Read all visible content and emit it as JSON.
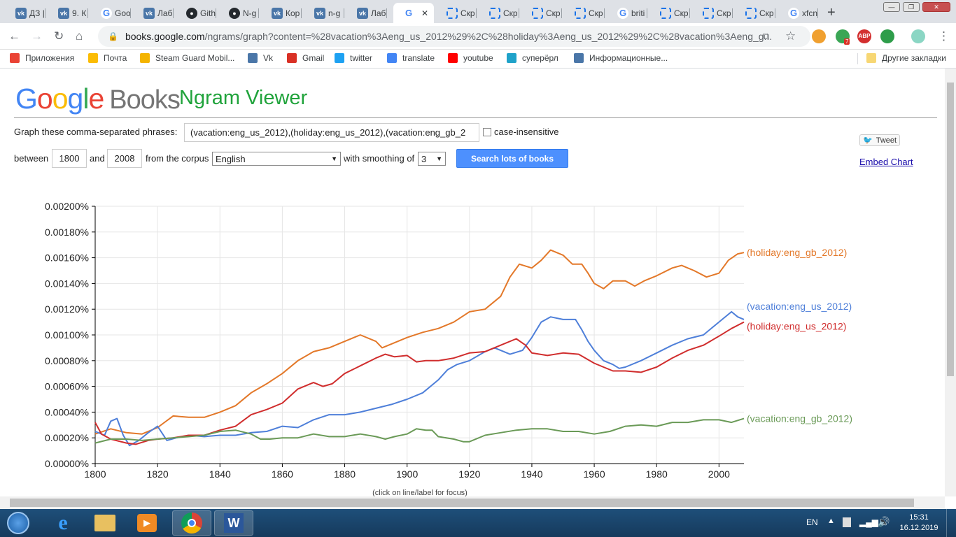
{
  "browser": {
    "tabs": [
      {
        "label": "ДЗ |",
        "icon": "vk-icon"
      },
      {
        "label": "9. К",
        "icon": "vk-icon"
      },
      {
        "label": "Goo",
        "icon": "google-icon"
      },
      {
        "label": "Лаб",
        "icon": "vk-icon"
      },
      {
        "label": "Gith",
        "icon": "github-icon"
      },
      {
        "label": "N-g",
        "icon": "github-icon"
      },
      {
        "label": "Кор",
        "icon": "vk-icon"
      },
      {
        "label": "n-g",
        "icon": "vk-icon"
      },
      {
        "label": "Лаб",
        "icon": "vk-icon"
      },
      {
        "label": "",
        "icon": "google-icon",
        "active": true
      },
      {
        "label": "Скр",
        "icon": "screenshot-icon"
      },
      {
        "label": "Скр",
        "icon": "screenshot-icon"
      },
      {
        "label": "Скр",
        "icon": "screenshot-icon"
      },
      {
        "label": "Скр",
        "icon": "screenshot-icon"
      },
      {
        "label": "briti",
        "icon": "google-icon"
      },
      {
        "label": "Скр",
        "icon": "screenshot-icon"
      },
      {
        "label": "Скр",
        "icon": "screenshot-icon"
      },
      {
        "label": "Скр",
        "icon": "screenshot-icon"
      },
      {
        "label": "xfcn",
        "icon": "google-icon"
      }
    ],
    "url_host": "books.google.com",
    "url_path": "/ngrams/graph?content=%28vacation%3Aeng_us_2012%29%2C%28holiday%3Aeng_us_2012%29%2C%28vacation%3Aeng_g...",
    "abp_badge": "ABP",
    "ext_badge": "7",
    "bookmarks": [
      {
        "label": "Приложения",
        "color": "#ea4335"
      },
      {
        "label": "Почта",
        "color": "#fbbc05"
      },
      {
        "label": "Steam Guard Mobil...",
        "color": "#f4b400"
      },
      {
        "label": "Vk",
        "color": "#4a76a8"
      },
      {
        "label": "Gmail",
        "color": "#d93025"
      },
      {
        "label": "twitter",
        "color": "#1da1f2"
      },
      {
        "label": "translate",
        "color": "#4285f4"
      },
      {
        "label": "youtube",
        "color": "#ff0000"
      },
      {
        "label": "суперёрл",
        "color": "#1fa2c9"
      },
      {
        "label": "Информационные...",
        "color": "#4a76a8"
      }
    ],
    "other_bookmarks": "Другие закладки"
  },
  "page": {
    "logo_google": "Google",
    "logo_books": "Books",
    "title": "Ngram Viewer",
    "graph_label": "Graph these comma-separated phrases:",
    "phrases_value": "(vacation:eng_us_2012),(holiday:eng_us_2012),(vacation:eng_gb_2",
    "case_insensitive_label": "case-insensitive",
    "between_label": "between",
    "year_from": "1800",
    "and_label": "and",
    "year_to": "2008",
    "corpus_label": "from the corpus",
    "corpus_value": "English",
    "smoothing_label": "with smoothing of",
    "smoothing_value": "3",
    "search_button": "Search lots of books",
    "tweet_button": "Tweet",
    "embed_link": "Embed Chart",
    "click_hint": "(click on line/label for focus)"
  },
  "chart_data": {
    "type": "line",
    "xlim": [
      1800,
      2008
    ],
    "ylim": [
      0,
      0.002
    ],
    "x_ticks": [
      "1800",
      "1820",
      "1840",
      "1860",
      "1880",
      "1900",
      "1920",
      "1940",
      "1960",
      "1980",
      "2000"
    ],
    "y_ticks": [
      "0.00000%",
      "0.00020%",
      "0.00040%",
      "0.00060%",
      "0.00080%",
      "0.00100%",
      "0.00120%",
      "0.00140%",
      "0.00160%",
      "0.00180%",
      "0.00200%"
    ],
    "grid": true,
    "series": [
      {
        "name": "(holiday:eng_gb_2012)",
        "color": "#e37829",
        "points": [
          [
            1800,
            0.00023
          ],
          [
            1805,
            0.00027
          ],
          [
            1810,
            0.00024
          ],
          [
            1815,
            0.00023
          ],
          [
            1820,
            0.00028
          ],
          [
            1825,
            0.00037
          ],
          [
            1830,
            0.00036
          ],
          [
            1835,
            0.00036
          ],
          [
            1840,
            0.0004
          ],
          [
            1845,
            0.00045
          ],
          [
            1850,
            0.00055
          ],
          [
            1855,
            0.00062
          ],
          [
            1860,
            0.0007
          ],
          [
            1865,
            0.0008
          ],
          [
            1870,
            0.00087
          ],
          [
            1875,
            0.0009
          ],
          [
            1880,
            0.00095
          ],
          [
            1885,
            0.001
          ],
          [
            1890,
            0.00095
          ],
          [
            1892,
            0.0009
          ],
          [
            1895,
            0.00093
          ],
          [
            1900,
            0.00098
          ],
          [
            1905,
            0.00102
          ],
          [
            1910,
            0.00105
          ],
          [
            1915,
            0.0011
          ],
          [
            1920,
            0.00118
          ],
          [
            1925,
            0.0012
          ],
          [
            1930,
            0.0013
          ],
          [
            1933,
            0.00145
          ],
          [
            1936,
            0.00155
          ],
          [
            1940,
            0.00152
          ],
          [
            1943,
            0.00158
          ],
          [
            1946,
            0.00166
          ],
          [
            1950,
            0.00162
          ],
          [
            1953,
            0.00155
          ],
          [
            1956,
            0.00155
          ],
          [
            1958,
            0.00148
          ],
          [
            1960,
            0.0014
          ],
          [
            1963,
            0.00136
          ],
          [
            1966,
            0.00142
          ],
          [
            1970,
            0.00142
          ],
          [
            1973,
            0.00138
          ],
          [
            1976,
            0.00142
          ],
          [
            1980,
            0.00146
          ],
          [
            1985,
            0.00152
          ],
          [
            1988,
            0.00154
          ],
          [
            1992,
            0.0015
          ],
          [
            1996,
            0.00145
          ],
          [
            2000,
            0.00148
          ],
          [
            2003,
            0.00158
          ],
          [
            2006,
            0.00163
          ],
          [
            2008,
            0.00164
          ]
        ]
      },
      {
        "name": "(vacation:eng_us_2012)",
        "color": "#4e7fd9",
        "points": [
          [
            1800,
            0.00025
          ],
          [
            1803,
            0.00022
          ],
          [
            1805,
            0.00033
          ],
          [
            1807,
            0.00035
          ],
          [
            1809,
            0.00022
          ],
          [
            1811,
            0.00014
          ],
          [
            1814,
            0.00018
          ],
          [
            1817,
            0.00024
          ],
          [
            1820,
            0.00029
          ],
          [
            1823,
            0.00018
          ],
          [
            1826,
            0.0002
          ],
          [
            1830,
            0.00022
          ],
          [
            1835,
            0.00021
          ],
          [
            1840,
            0.00022
          ],
          [
            1845,
            0.00022
          ],
          [
            1850,
            0.00024
          ],
          [
            1855,
            0.00025
          ],
          [
            1860,
            0.00029
          ],
          [
            1865,
            0.00028
          ],
          [
            1870,
            0.00034
          ],
          [
            1875,
            0.00038
          ],
          [
            1880,
            0.00038
          ],
          [
            1885,
            0.0004
          ],
          [
            1890,
            0.00043
          ],
          [
            1895,
            0.00046
          ],
          [
            1900,
            0.0005
          ],
          [
            1905,
            0.00055
          ],
          [
            1910,
            0.00065
          ],
          [
            1913,
            0.00073
          ],
          [
            1916,
            0.00077
          ],
          [
            1920,
            0.0008
          ],
          [
            1925,
            0.00087
          ],
          [
            1928,
            0.0009
          ],
          [
            1930,
            0.00088
          ],
          [
            1933,
            0.00085
          ],
          [
            1937,
            0.00088
          ],
          [
            1940,
            0.00098
          ],
          [
            1943,
            0.0011
          ],
          [
            1946,
            0.00114
          ],
          [
            1950,
            0.00112
          ],
          [
            1954,
            0.00112
          ],
          [
            1956,
            0.00104
          ],
          [
            1958,
            0.00095
          ],
          [
            1960,
            0.00088
          ],
          [
            1963,
            0.0008
          ],
          [
            1966,
            0.00077
          ],
          [
            1968,
            0.00074
          ],
          [
            1970,
            0.00075
          ],
          [
            1975,
            0.0008
          ],
          [
            1980,
            0.00086
          ],
          [
            1985,
            0.00092
          ],
          [
            1990,
            0.00097
          ],
          [
            1995,
            0.001
          ],
          [
            2000,
            0.0011
          ],
          [
            2004,
            0.00118
          ],
          [
            2006,
            0.00114
          ],
          [
            2008,
            0.00112
          ]
        ]
      },
      {
        "name": "(holiday:eng_us_2012)",
        "color": "#d02d2d",
        "points": [
          [
            1800,
            0.00032
          ],
          [
            1802,
            0.00023
          ],
          [
            1805,
            0.00019
          ],
          [
            1810,
            0.00016
          ],
          [
            1813,
            0.00015
          ],
          [
            1817,
            0.00018
          ],
          [
            1820,
            0.00019
          ],
          [
            1825,
            0.0002
          ],
          [
            1830,
            0.00022
          ],
          [
            1835,
            0.00022
          ],
          [
            1840,
            0.00026
          ],
          [
            1845,
            0.00029
          ],
          [
            1850,
            0.00038
          ],
          [
            1855,
            0.00042
          ],
          [
            1860,
            0.00047
          ],
          [
            1865,
            0.00058
          ],
          [
            1870,
            0.00063
          ],
          [
            1873,
            0.0006
          ],
          [
            1876,
            0.00062
          ],
          [
            1880,
            0.0007
          ],
          [
            1885,
            0.00076
          ],
          [
            1890,
            0.00082
          ],
          [
            1893,
            0.00085
          ],
          [
            1896,
            0.00083
          ],
          [
            1900,
            0.00084
          ],
          [
            1903,
            0.00079
          ],
          [
            1906,
            0.0008
          ],
          [
            1910,
            0.0008
          ],
          [
            1915,
            0.00082
          ],
          [
            1920,
            0.00086
          ],
          [
            1925,
            0.00087
          ],
          [
            1930,
            0.00092
          ],
          [
            1935,
            0.00097
          ],
          [
            1938,
            0.00092
          ],
          [
            1940,
            0.00086
          ],
          [
            1945,
            0.00084
          ],
          [
            1950,
            0.00086
          ],
          [
            1955,
            0.00085
          ],
          [
            1960,
            0.00078
          ],
          [
            1963,
            0.00075
          ],
          [
            1966,
            0.00072
          ],
          [
            1970,
            0.00072
          ],
          [
            1975,
            0.00071
          ],
          [
            1980,
            0.00075
          ],
          [
            1985,
            0.00082
          ],
          [
            1990,
            0.00088
          ],
          [
            1995,
            0.00092
          ],
          [
            2000,
            0.00099
          ],
          [
            2004,
            0.00105
          ],
          [
            2008,
            0.0011
          ]
        ]
      },
      {
        "name": "(vacation:eng_gb_2012)",
        "color": "#6a9a57",
        "points": [
          [
            1800,
            0.00016
          ],
          [
            1805,
            0.00019
          ],
          [
            1810,
            0.00019
          ],
          [
            1815,
            0.00018
          ],
          [
            1820,
            0.00019
          ],
          [
            1825,
            0.0002
          ],
          [
            1830,
            0.00021
          ],
          [
            1835,
            0.00022
          ],
          [
            1840,
            0.00025
          ],
          [
            1845,
            0.00026
          ],
          [
            1850,
            0.00023
          ],
          [
            1853,
            0.00019
          ],
          [
            1856,
            0.00019
          ],
          [
            1860,
            0.0002
          ],
          [
            1865,
            0.0002
          ],
          [
            1870,
            0.00023
          ],
          [
            1875,
            0.00021
          ],
          [
            1880,
            0.00021
          ],
          [
            1885,
            0.00023
          ],
          [
            1890,
            0.00021
          ],
          [
            1893,
            0.00019
          ],
          [
            1896,
            0.00021
          ],
          [
            1900,
            0.00023
          ],
          [
            1903,
            0.00027
          ],
          [
            1906,
            0.00026
          ],
          [
            1908,
            0.00026
          ],
          [
            1910,
            0.00021
          ],
          [
            1915,
            0.00019
          ],
          [
            1918,
            0.00017
          ],
          [
            1920,
            0.00017
          ],
          [
            1925,
            0.00022
          ],
          [
            1930,
            0.00024
          ],
          [
            1935,
            0.00026
          ],
          [
            1940,
            0.00027
          ],
          [
            1945,
            0.00027
          ],
          [
            1950,
            0.00025
          ],
          [
            1955,
            0.00025
          ],
          [
            1960,
            0.00023
          ],
          [
            1965,
            0.00025
          ],
          [
            1970,
            0.00029
          ],
          [
            1975,
            0.0003
          ],
          [
            1980,
            0.00029
          ],
          [
            1985,
            0.00032
          ],
          [
            1990,
            0.00032
          ],
          [
            1995,
            0.00034
          ],
          [
            2000,
            0.00034
          ],
          [
            2004,
            0.00032
          ],
          [
            2008,
            0.00035
          ]
        ]
      }
    ]
  },
  "taskbar": {
    "lang": "EN",
    "time": "15:31",
    "date": "16.12.2019"
  }
}
